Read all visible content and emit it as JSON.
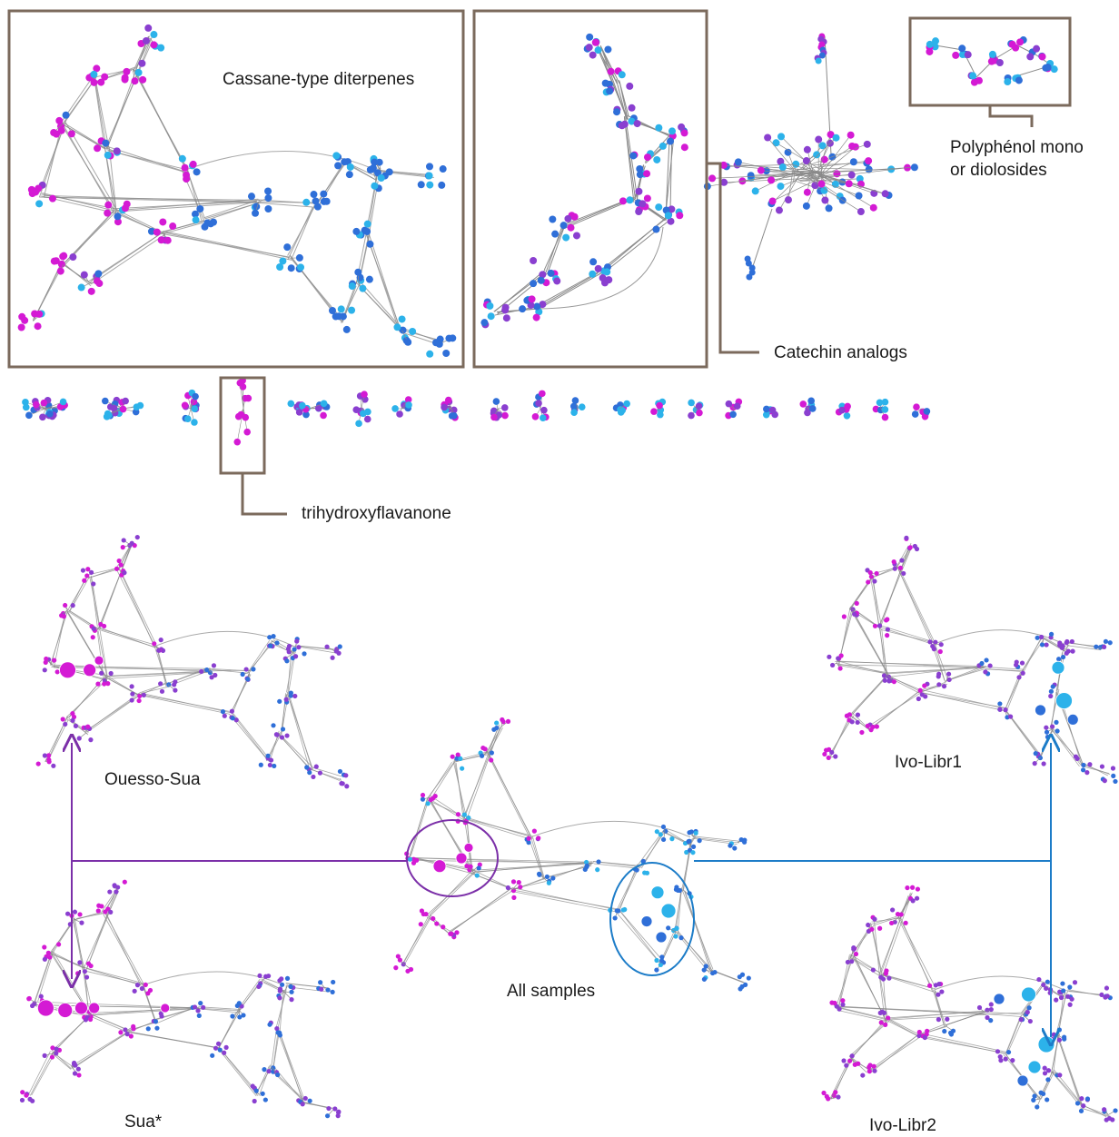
{
  "labels": {
    "cassane": "Cassane-type diterpenes",
    "polyphenol_line1": "Polyphénol mono",
    "polyphenol_line2": "or diolosides",
    "catechin": "Catechin analogs",
    "trihydroxy": "trihydroxyflavanone",
    "ouesso": "Ouesso-Sua",
    "ivo1": "Ivo-Libr1",
    "all": "All samples",
    "sua": "Sua*",
    "ivo2": "Ivo-Libr2"
  },
  "colors": {
    "box": "#7b6a5c",
    "edge": "#8a8a8a",
    "node_magenta": "#d41ad4",
    "node_purple": "#8a3fd0",
    "node_blue": "#2f6fd8",
    "node_cyan": "#2cb2ea",
    "arrow_purple": "#7b2fa8",
    "arrow_blue": "#1c7cc8"
  }
}
